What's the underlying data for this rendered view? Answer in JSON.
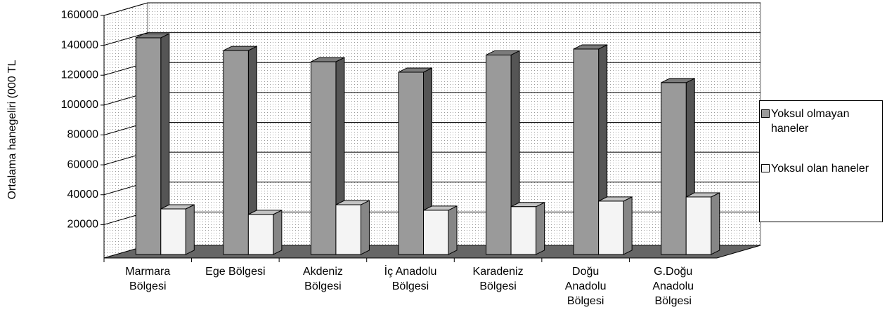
{
  "chart_data": {
    "type": "bar3d",
    "ylabel": "Ortalama hanegeliri (000 TL",
    "categories": [
      "Marmara Bölgesi",
      "Ege Bölgesi",
      "Akdeniz Bölgesi",
      "İç Anadolu Bölgesi",
      "Karadeniz Bölgesi",
      "Doğu Anadolu Bölgesi",
      "G.Doğu Anadolu Bölgesi"
    ],
    "series": [
      {
        "name": "Yoksul olmayan haneler",
        "color": "#9a9a9a",
        "values": [
          145000,
          136500,
          129000,
          122000,
          133500,
          137500,
          115000
        ]
      },
      {
        "name": "Yoksul olan haneler",
        "color": "#f4f4f4",
        "values": [
          30500,
          26800,
          33300,
          29600,
          32000,
          35700,
          38500
        ]
      }
    ],
    "ylim": [
      0,
      160000
    ],
    "yticks": [
      20000,
      40000,
      60000,
      80000,
      100000,
      120000,
      140000,
      160000
    ],
    "grid": true
  }
}
